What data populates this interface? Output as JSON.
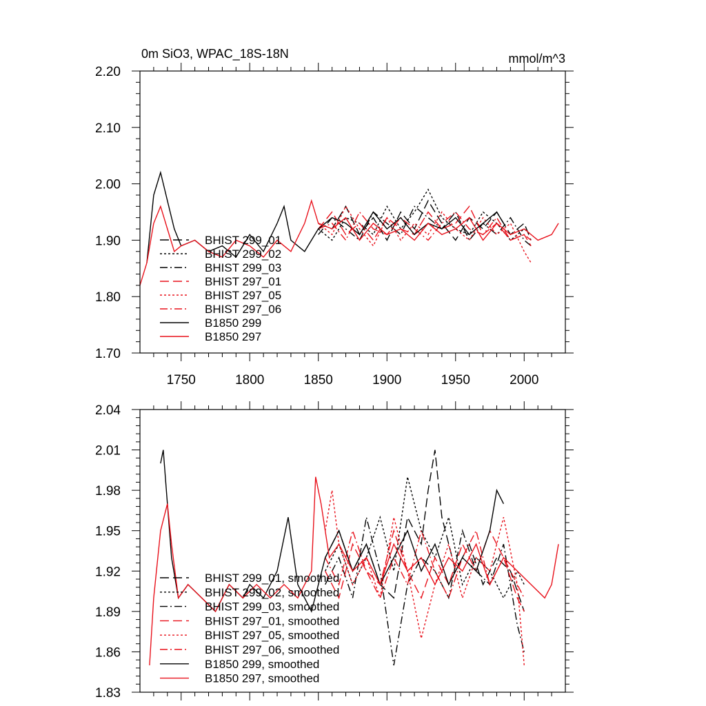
{
  "chart_data": [
    {
      "type": "line",
      "title": "0m SiO3, WPAC_18S-18N",
      "units": "mmol/m^3",
      "xlim": [
        1720,
        2030
      ],
      "ylim": [
        1.7,
        2.2
      ],
      "xticks": [
        1750,
        1800,
        1850,
        1900,
        1950,
        2000
      ],
      "yticks": [
        1.7,
        1.8,
        1.9,
        2.0,
        2.1,
        2.2
      ],
      "ytick_labels": [
        "1.70",
        "1.80",
        "1.90",
        "2.00",
        "2.10",
        "2.20"
      ],
      "legend_position": "lower-left",
      "series": [
        {
          "name": "BHIST 299_01",
          "color": "#000000",
          "style": "longdash",
          "x": [
            1850,
            1860,
            1870,
            1880,
            1890,
            1900,
            1910,
            1920,
            1930,
            1940,
            1950,
            1960,
            1970,
            1980,
            1990,
            2000,
            2005
          ],
          "values": [
            1.93,
            1.92,
            1.96,
            1.91,
            1.94,
            1.9,
            1.95,
            1.92,
            1.97,
            1.93,
            1.9,
            1.94,
            1.92,
            1.95,
            1.91,
            1.93,
            1.9
          ]
        },
        {
          "name": "BHIST 299_02",
          "color": "#000000",
          "style": "dotted",
          "x": [
            1850,
            1860,
            1870,
            1880,
            1890,
            1900,
            1910,
            1920,
            1930,
            1940,
            1950,
            1960,
            1970,
            1980,
            1990,
            2000,
            2005
          ],
          "values": [
            1.92,
            1.9,
            1.94,
            1.93,
            1.91,
            1.96,
            1.92,
            1.95,
            1.99,
            1.94,
            1.92,
            1.91,
            1.95,
            1.93,
            1.9,
            1.92,
            1.91
          ]
        },
        {
          "name": "BHIST 299_03",
          "color": "#000000",
          "style": "dashdot",
          "x": [
            1850,
            1860,
            1870,
            1880,
            1890,
            1900,
            1910,
            1920,
            1930,
            1940,
            1950,
            1960,
            1970,
            1980,
            1990,
            2000,
            2005
          ],
          "values": [
            1.91,
            1.94,
            1.92,
            1.9,
            1.95,
            1.93,
            1.91,
            1.96,
            1.94,
            1.92,
            1.95,
            1.9,
            1.93,
            1.91,
            1.94,
            1.9,
            1.89
          ]
        },
        {
          "name": "BHIST 297_01",
          "color": "#e8101a",
          "style": "longdash",
          "x": [
            1850,
            1860,
            1870,
            1880,
            1890,
            1900,
            1910,
            1920,
            1930,
            1940,
            1950,
            1960,
            1970,
            1980,
            1990,
            2000,
            2005
          ],
          "values": [
            1.92,
            1.95,
            1.91,
            1.93,
            1.9,
            1.94,
            1.92,
            1.91,
            1.95,
            1.92,
            1.93,
            1.96,
            1.91,
            1.93,
            1.9,
            1.91,
            1.89
          ]
        },
        {
          "name": "BHIST 297_05",
          "color": "#e8101a",
          "style": "dotted",
          "x": [
            1850,
            1860,
            1870,
            1880,
            1890,
            1900,
            1910,
            1920,
            1930,
            1940,
            1950,
            1960,
            1970,
            1980,
            1990,
            2000,
            2005
          ],
          "values": [
            1.93,
            1.91,
            1.96,
            1.92,
            1.89,
            1.94,
            1.9,
            1.93,
            1.91,
            1.95,
            1.92,
            1.9,
            1.94,
            1.91,
            1.93,
            1.88,
            1.86
          ]
        },
        {
          "name": "BHIST 297_06",
          "color": "#e8101a",
          "style": "dashdot",
          "x": [
            1850,
            1860,
            1870,
            1880,
            1890,
            1900,
            1910,
            1920,
            1930,
            1940,
            1950,
            1960,
            1970,
            1980,
            1990,
            2000,
            2005
          ],
          "values": [
            1.92,
            1.93,
            1.9,
            1.95,
            1.92,
            1.91,
            1.94,
            1.92,
            1.9,
            1.93,
            1.95,
            1.92,
            1.91,
            1.94,
            1.9,
            1.91,
            1.9
          ]
        },
        {
          "name": "B1850 299",
          "color": "#000000",
          "style": "solid",
          "x": [
            1725,
            1730,
            1735,
            1740,
            1745,
            1750,
            1760,
            1770,
            1780,
            1790,
            1800,
            1810,
            1820,
            1825,
            1830,
            1840,
            1850,
            1860,
            1870,
            1880,
            1890,
            1900,
            1910,
            1920,
            1930,
            1940,
            1950,
            1960,
            1970,
            1980,
            1985
          ],
          "values": [
            1.86,
            1.98,
            2.02,
            1.97,
            1.92,
            1.89,
            1.9,
            1.88,
            1.89,
            1.87,
            1.91,
            1.88,
            1.93,
            1.96,
            1.9,
            1.88,
            1.92,
            1.94,
            1.93,
            1.91,
            1.95,
            1.92,
            1.94,
            1.91,
            1.93,
            1.92,
            1.94,
            1.91,
            1.93,
            1.95,
            1.93
          ]
        },
        {
          "name": "B1850 297",
          "color": "#e8101a",
          "style": "solid",
          "x": [
            1720,
            1725,
            1730,
            1735,
            1740,
            1745,
            1750,
            1760,
            1770,
            1780,
            1790,
            1800,
            1810,
            1820,
            1830,
            1840,
            1845,
            1850,
            1860,
            1870,
            1880,
            1890,
            1900,
            1910,
            1920,
            1930,
            1940,
            1950,
            1960,
            1970,
            1980,
            1990,
            2000,
            2010,
            2020,
            2025
          ],
          "values": [
            1.82,
            1.86,
            1.93,
            1.96,
            1.92,
            1.88,
            1.89,
            1.9,
            1.88,
            1.87,
            1.9,
            1.89,
            1.87,
            1.9,
            1.88,
            1.93,
            1.97,
            1.93,
            1.92,
            1.94,
            1.9,
            1.93,
            1.91,
            1.92,
            1.9,
            1.93,
            1.91,
            1.92,
            1.94,
            1.9,
            1.93,
            1.91,
            1.92,
            1.9,
            1.91,
            1.93
          ]
        }
      ]
    },
    {
      "type": "line",
      "title": "",
      "xlim": [
        1720,
        2030
      ],
      "ylim": [
        1.83,
        2.04
      ],
      "xticks": [
        1750,
        1800,
        1850,
        1900,
        1950,
        2000
      ],
      "yticks": [
        1.83,
        1.86,
        1.89,
        1.92,
        1.95,
        1.98,
        2.01,
        2.04
      ],
      "ytick_labels": [
        "1.83",
        "1.86",
        "1.89",
        "1.92",
        "1.95",
        "1.98",
        "2.01",
        "2.04"
      ],
      "legend_position": "lower-left",
      "series": [
        {
          "name": "BHIST 299_01, smoothed",
          "color": "#000000",
          "style": "longdash",
          "x": [
            1855,
            1865,
            1875,
            1885,
            1895,
            1905,
            1915,
            1925,
            1930,
            1935,
            1940,
            1950,
            1960,
            1970,
            1980,
            1990,
            2000
          ],
          "values": [
            1.93,
            1.95,
            1.92,
            1.94,
            1.91,
            1.9,
            1.96,
            1.94,
            1.98,
            2.01,
            1.96,
            1.92,
            1.94,
            1.91,
            1.93,
            1.92,
            1.89
          ]
        },
        {
          "name": "BHIST 299_02, smoothed",
          "color": "#000000",
          "style": "dotted",
          "x": [
            1855,
            1865,
            1875,
            1885,
            1895,
            1905,
            1915,
            1925,
            1935,
            1945,
            1955,
            1965,
            1975,
            1985,
            1995,
            2000
          ],
          "values": [
            1.92,
            1.94,
            1.91,
            1.93,
            1.96,
            1.92,
            1.99,
            1.95,
            1.93,
            1.96,
            1.91,
            1.93,
            1.92,
            1.9,
            1.92,
            1.91
          ]
        },
        {
          "name": "BHIST 299_03, smoothed",
          "color": "#000000",
          "style": "dashdot",
          "x": [
            1855,
            1865,
            1875,
            1885,
            1895,
            1905,
            1915,
            1925,
            1935,
            1945,
            1955,
            1965,
            1975,
            1985,
            1995,
            2000
          ],
          "values": [
            1.91,
            1.93,
            1.9,
            1.96,
            1.92,
            1.85,
            1.91,
            1.93,
            1.92,
            1.9,
            1.95,
            1.92,
            1.91,
            1.94,
            1.88,
            1.86
          ]
        },
        {
          "name": "BHIST 297_01, smoothed",
          "color": "#e8101a",
          "style": "longdash",
          "x": [
            1855,
            1865,
            1875,
            1885,
            1895,
            1905,
            1915,
            1925,
            1935,
            1945,
            1955,
            1965,
            1975,
            1985,
            1995,
            2000
          ],
          "values": [
            1.92,
            1.9,
            1.94,
            1.92,
            1.91,
            1.95,
            1.92,
            1.9,
            1.93,
            1.91,
            1.94,
            1.92,
            1.95,
            1.93,
            1.9,
            1.89
          ]
        },
        {
          "name": "BHIST 297_05, smoothed",
          "color": "#e8101a",
          "style": "dotted",
          "x": [
            1855,
            1860,
            1865,
            1875,
            1885,
            1895,
            1905,
            1915,
            1925,
            1935,
            1945,
            1955,
            1965,
            1975,
            1985,
            1995,
            2000
          ],
          "values": [
            1.95,
            1.98,
            1.94,
            1.91,
            1.93,
            1.9,
            1.96,
            1.92,
            1.87,
            1.91,
            1.94,
            1.9,
            1.93,
            1.92,
            1.96,
            1.91,
            1.85
          ]
        },
        {
          "name": "BHIST 297_06, smoothed",
          "color": "#e8101a",
          "style": "dashdot",
          "x": [
            1855,
            1865,
            1875,
            1885,
            1895,
            1905,
            1915,
            1925,
            1935,
            1945,
            1955,
            1965,
            1975,
            1985,
            1995,
            2000
          ],
          "values": [
            1.93,
            1.91,
            1.95,
            1.92,
            1.9,
            1.93,
            1.91,
            1.95,
            1.92,
            1.9,
            1.93,
            1.95,
            1.91,
            1.93,
            1.91,
            1.9
          ]
        },
        {
          "name": "B1850 299, smoothed",
          "color": "#000000",
          "style": "solid",
          "x": [
            1735,
            1737,
            1740,
            1743,
            1748,
            1755,
            1765,
            1775,
            1785,
            1795,
            1800,
            1810,
            1820,
            1828,
            1835,
            1845,
            1855,
            1865,
            1875,
            1885,
            1895,
            1905,
            1915,
            1925,
            1935,
            1945,
            1955,
            1965,
            1975,
            1980,
            1985
          ],
          "values": [
            2.0,
            2.01,
            1.97,
            1.93,
            1.9,
            1.91,
            1.9,
            1.89,
            1.91,
            1.9,
            1.91,
            1.9,
            1.92,
            1.96,
            1.91,
            1.89,
            1.93,
            1.95,
            1.92,
            1.94,
            1.91,
            1.93,
            1.95,
            1.92,
            1.94,
            1.91,
            1.93,
            1.92,
            1.95,
            1.98,
            1.97
          ]
        },
        {
          "name": "B1850 297, smoothed",
          "color": "#e8101a",
          "style": "solid",
          "x": [
            1727,
            1730,
            1735,
            1740,
            1743,
            1748,
            1755,
            1765,
            1775,
            1785,
            1795,
            1805,
            1815,
            1825,
            1835,
            1845,
            1848,
            1852,
            1858,
            1865,
            1875,
            1885,
            1895,
            1905,
            1915,
            1925,
            1935,
            1945,
            1955,
            1965,
            1975,
            1985,
            1995,
            2005,
            2015,
            2020,
            2025
          ],
          "values": [
            1.85,
            1.9,
            1.95,
            1.97,
            1.94,
            1.9,
            1.91,
            1.9,
            1.89,
            1.91,
            1.9,
            1.91,
            1.9,
            1.91,
            1.9,
            1.92,
            1.99,
            1.97,
            1.93,
            1.94,
            1.92,
            1.93,
            1.91,
            1.94,
            1.92,
            1.93,
            1.91,
            1.93,
            1.92,
            1.94,
            1.91,
            1.93,
            1.92,
            1.91,
            1.9,
            1.91,
            1.94
          ]
        }
      ]
    }
  ]
}
